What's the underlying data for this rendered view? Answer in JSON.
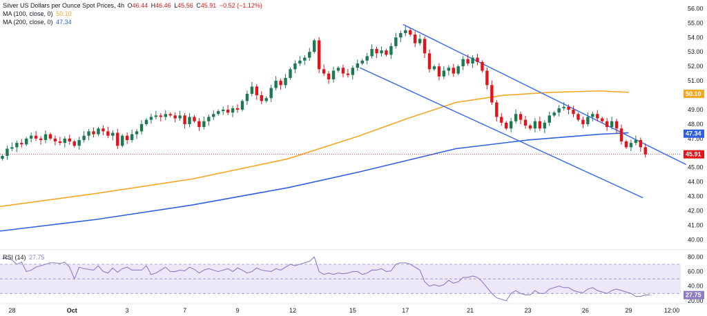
{
  "legend": {
    "title": "Silver US Dollars per Ounce Spot Prices, 4h",
    "o_label": "O",
    "o": "46.44",
    "h_label": "H",
    "h": "46.46",
    "l_label": "L",
    "l": "45.56",
    "c_label": "C",
    "c": "45.91",
    "change": "−0.52 (−1.12%)",
    "ma100_label": "MA (100, close, 0)",
    "ma100_value": "50.10",
    "ma200_label": "MA (200, close, 0)",
    "ma200_value": "47.34",
    "rsi_label": "RSI (14)",
    "rsi_value": "27.75"
  },
  "colors": {
    "up": "#26a69a",
    "up_dark": "#1b7a4f",
    "down": "#e0151b",
    "ma100": "#f5a623",
    "ma200": "#2f5fe0",
    "channel": "#3d6ef0",
    "rsi": "#8e7cc3",
    "rsi_band": "#ede8f7",
    "price_line": "#e0151b"
  },
  "chart_data": [
    {
      "type": "candlestick",
      "ylim": [
        39.4,
        56.4
      ],
      "y_ticks": [
        "56.00",
        "55.00",
        "54.00",
        "53.00",
        "52.00",
        "51.00",
        "50.00",
        "49.00",
        "48.00",
        "47.00",
        "46.00",
        "45.00",
        "44.00",
        "43.00",
        "42.00",
        "41.00",
        "40.00"
      ],
      "y_tick_values": [
        56,
        55,
        54,
        53,
        52,
        51,
        50,
        49,
        48,
        47,
        46,
        45,
        44,
        43,
        42,
        41,
        40
      ],
      "x_ticks": [
        "28",
        "Oct",
        "3",
        "7",
        "9",
        "12",
        "15",
        "17",
        "21",
        "23",
        "26",
        "29",
        "12:00"
      ],
      "x_tick_index": [
        2.5,
        15,
        26.5,
        38.5,
        49.5,
        61,
        73.5,
        84.5,
        98,
        110,
        122,
        131,
        140
      ],
      "last_price": 45.91,
      "last_price_label": "45.91",
      "ma100_label_value": "50.10",
      "ma200_label_value": "47.34",
      "closes": [
        45.8,
        46.3,
        46.4,
        46.7,
        46.6,
        47.0,
        47.2,
        47.0,
        46.9,
        47.3,
        47.0,
        46.8,
        46.7,
        47.0,
        46.8,
        46.5,
        46.9,
        47.2,
        47.5,
        47.3,
        47.7,
        47.5,
        47.2,
        47.4,
        46.5,
        47.2,
        46.9,
        47.3,
        47.5,
        48.0,
        48.3,
        48.5,
        48.6,
        48.5,
        48.7,
        48.6,
        48.4,
        48.6,
        48.0,
        48.5,
        48.2,
        47.8,
        48.2,
        48.5,
        48.7,
        48.9,
        49.0,
        48.8,
        49.1,
        49.0,
        49.6,
        50.1,
        50.6,
        50.0,
        49.6,
        49.8,
        50.5,
        51.0,
        50.7,
        51.2,
        51.8,
        52.2,
        52.4,
        52.6,
        53.0,
        53.8,
        51.8,
        51.5,
        51.1,
        51.7,
        51.9,
        51.5,
        51.4,
        51.9,
        52.2,
        52.4,
        52.7,
        53.2,
        52.9,
        53.1,
        52.8,
        53.4,
        54.0,
        54.3,
        54.5,
        54.2,
        53.6,
        53.9,
        52.9,
        51.8,
        52.0,
        51.3,
        51.7,
        51.9,
        51.5,
        52.0,
        52.5,
        52.2,
        52.6,
        52.3,
        51.7,
        50.7,
        49.5,
        48.5,
        48.1,
        47.7,
        48.2,
        48.7,
        48.3,
        47.9,
        47.7,
        48.2,
        47.7,
        48.1,
        48.6,
        48.8,
        49.1,
        49.2,
        49.0,
        48.7,
        48.3,
        48.0,
        48.5,
        48.7,
        48.4,
        48.2,
        47.8,
        48.2,
        47.7,
        46.8,
        46.4,
        46.7,
        46.9,
        46.4,
        45.91
      ],
      "ma100_points": [
        [
          0,
          42.3
        ],
        [
          20,
          43.2
        ],
        [
          40,
          44.2
        ],
        [
          60,
          45.6
        ],
        [
          75,
          47.2
        ],
        [
          85,
          48.4
        ],
        [
          95,
          49.5
        ],
        [
          105,
          50.0
        ],
        [
          115,
          50.2
        ],
        [
          125,
          50.3
        ],
        [
          131,
          50.2
        ]
      ],
      "ma200_points": [
        [
          0,
          40.6
        ],
        [
          20,
          41.4
        ],
        [
          40,
          42.4
        ],
        [
          60,
          43.6
        ],
        [
          75,
          44.7
        ],
        [
          85,
          45.5
        ],
        [
          95,
          46.3
        ],
        [
          110,
          46.9
        ],
        [
          125,
          47.3
        ],
        [
          131,
          47.4
        ]
      ],
      "channel_upper": [
        [
          84,
          54.9
        ],
        [
          143,
          45.2
        ]
      ],
      "channel_lower": [
        [
          75,
          51.9
        ],
        [
          134,
          42.9
        ]
      ]
    },
    {
      "type": "line",
      "series_label": "RSI (14)",
      "ylim": [
        18,
        88
      ],
      "y_ticks": [
        "80.00",
        "60.00",
        "40.00",
        "20.00"
      ],
      "y_tick_values": [
        80,
        60,
        40,
        20
      ],
      "band": [
        30,
        70
      ],
      "midline": 50,
      "last_value_label": "27.75",
      "values": [
        78,
        78,
        76,
        70,
        73,
        60,
        62,
        66,
        68,
        70,
        72,
        72,
        71,
        73,
        66,
        50,
        66,
        64,
        63,
        62,
        68,
        60,
        58,
        65,
        59,
        64,
        66,
        62,
        62,
        62,
        68,
        56,
        58,
        62,
        66,
        60,
        60,
        62,
        61,
        66,
        63,
        58,
        62,
        64,
        62,
        60,
        62,
        64,
        60,
        65,
        62,
        58,
        60,
        65,
        62,
        61,
        60,
        64,
        62,
        66,
        70,
        68,
        70,
        72,
        74,
        80,
        60,
        56,
        58,
        56,
        58,
        57,
        58,
        60,
        60,
        56,
        58,
        62,
        62,
        64,
        60,
        61,
        70,
        72,
        72,
        70,
        66,
        62,
        46,
        40,
        42,
        40,
        42,
        48,
        44,
        46,
        52,
        52,
        54,
        52,
        46,
        38,
        30,
        24,
        22,
        20,
        30,
        34,
        30,
        28,
        28,
        34,
        30,
        30,
        36,
        38,
        40,
        38,
        38,
        34,
        32,
        31,
        36,
        38,
        34,
        32,
        30,
        34,
        36,
        34,
        32,
        30,
        26,
        26,
        28,
        27.75
      ]
    }
  ]
}
